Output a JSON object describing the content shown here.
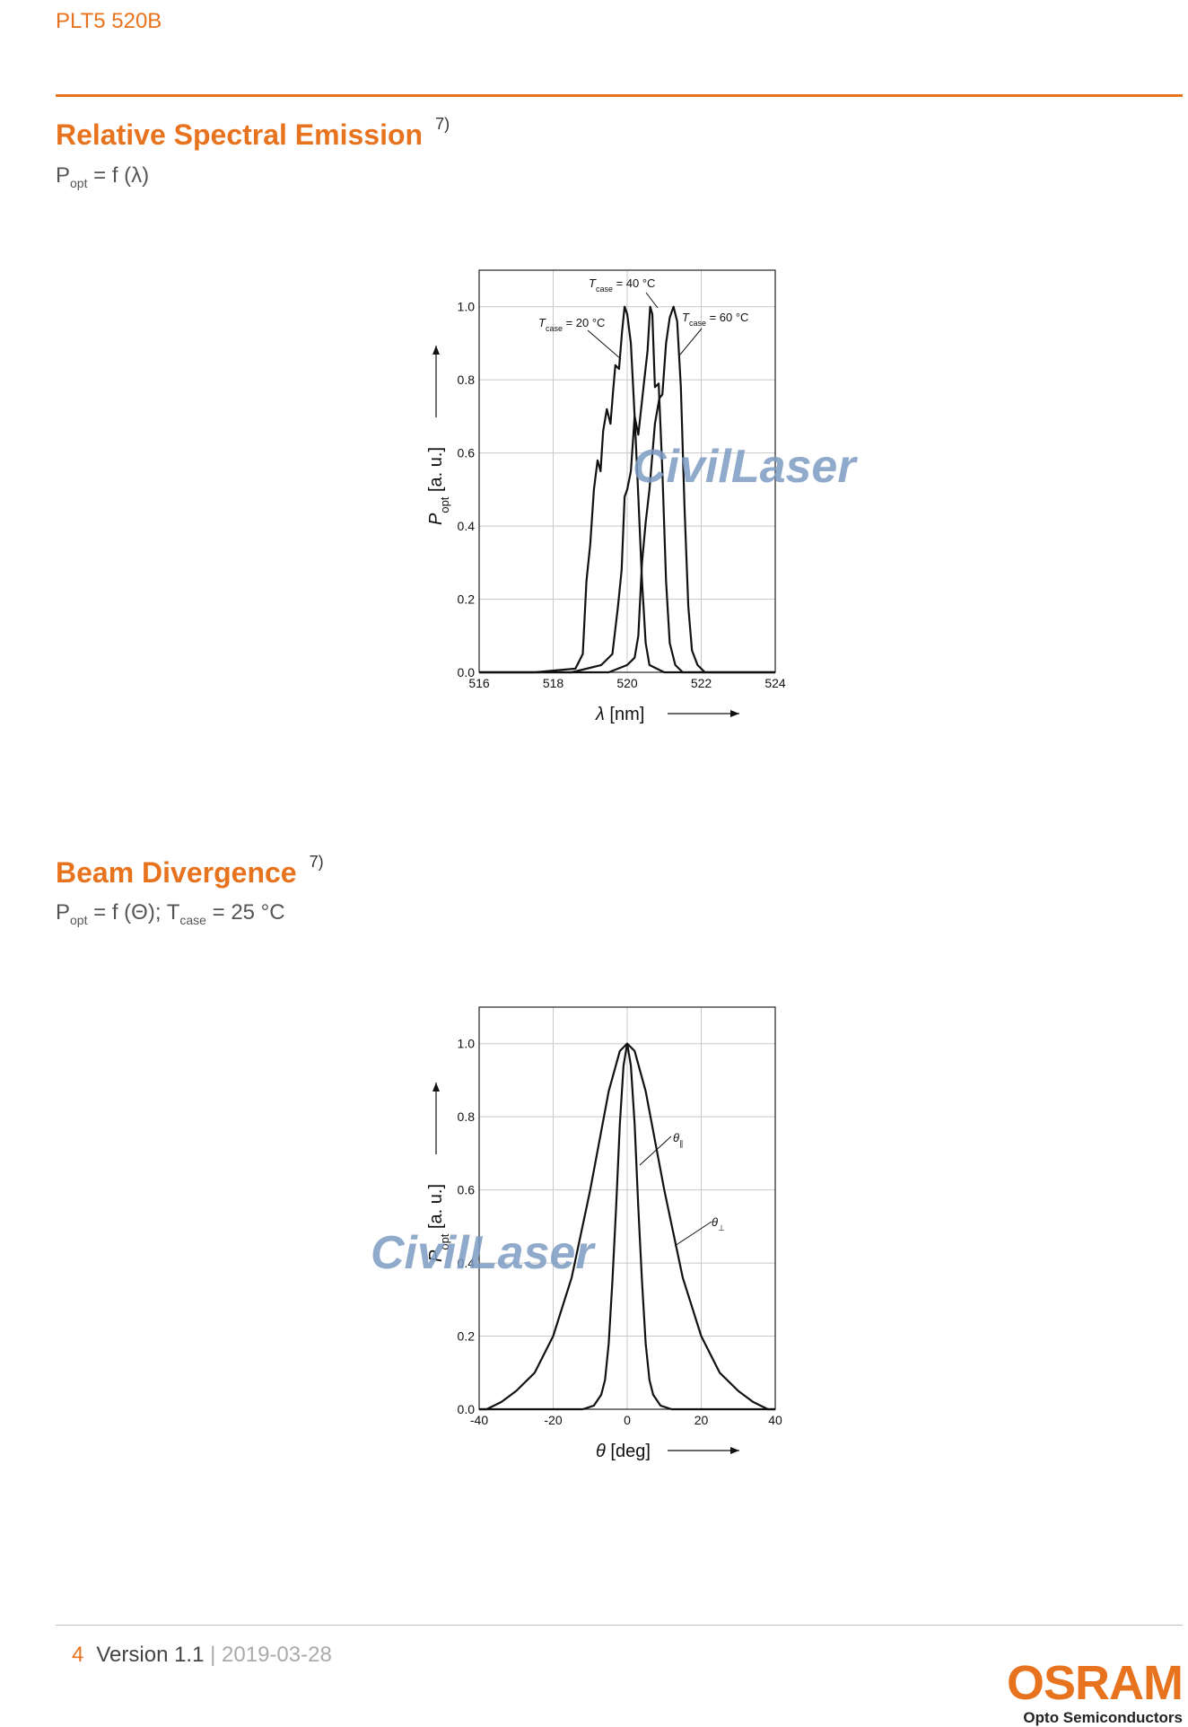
{
  "header": {
    "doc_id": "PLT5 520B"
  },
  "section1": {
    "title": "Relative Spectral Emission",
    "note": "7)",
    "formula": {
      "p": "P",
      "sub": "opt",
      "rest": " = f (λ)"
    }
  },
  "section2": {
    "title": "Beam Divergence",
    "note": "7)",
    "formula": {
      "p": "P",
      "sub": "opt",
      "mid": " = f (Θ); T",
      "sub2": "case",
      "rest": " = 25 °C"
    }
  },
  "footer": {
    "page": "4",
    "version": "Version 1.1",
    "sep": " | ",
    "date": "2019-03-28"
  },
  "logo": {
    "brand": "OSRAM",
    "tagline": "Opto Semiconductors"
  },
  "watermark": "CivilLaser",
  "chart_data": [
    {
      "type": "line",
      "ylabel_var": "P",
      "ylabel_sub": "opt",
      "ylabel_unit": "[a. u.]",
      "xlabel_var": "λ",
      "xlabel_unit": "[nm]",
      "xlim": [
        516,
        524
      ],
      "ylim": [
        0,
        1.1
      ],
      "xticks": [
        516,
        518,
        520,
        522,
        524
      ],
      "yticks": [
        0.0,
        0.2,
        0.4,
        0.6,
        0.8,
        1.0
      ],
      "ytick_labels": [
        "0.0",
        "0.2",
        "0.4",
        "0.6",
        "0.8",
        "1.0"
      ],
      "grid": true,
      "series": [
        {
          "name": "T_case = 20 °C",
          "label_var": "T",
          "label_sub": "case",
          "label_val": "= 20 °C",
          "x": [
            516,
            517.5,
            518.6,
            518.8,
            518.9,
            519.0,
            519.1,
            519.2,
            519.28,
            519.35,
            519.45,
            519.55,
            519.62,
            519.68,
            519.78,
            519.86,
            519.93,
            520.0,
            520.1,
            520.2,
            520.3,
            520.4,
            520.5,
            520.6,
            521,
            524
          ],
          "y": [
            0,
            0,
            0.01,
            0.05,
            0.25,
            0.35,
            0.5,
            0.58,
            0.55,
            0.66,
            0.72,
            0.68,
            0.77,
            0.84,
            0.83,
            0.93,
            1.0,
            0.98,
            0.9,
            0.7,
            0.48,
            0.25,
            0.08,
            0.02,
            0,
            0
          ]
        },
        {
          "name": "T_case = 40 °C",
          "label_var": "T",
          "label_sub": "case",
          "label_val": "= 40 °C",
          "x": [
            516,
            518.5,
            519.3,
            519.6,
            519.75,
            519.85,
            519.93,
            520.0,
            520.1,
            520.2,
            520.3,
            520.45,
            520.55,
            520.62,
            520.68,
            520.75,
            520.85,
            520.95,
            521.05,
            521.15,
            521.3,
            521.5,
            524
          ],
          "y": [
            0,
            0,
            0.02,
            0.05,
            0.18,
            0.28,
            0.48,
            0.5,
            0.55,
            0.7,
            0.65,
            0.79,
            0.88,
            1.0,
            0.98,
            0.78,
            0.79,
            0.55,
            0.25,
            0.08,
            0.02,
            0,
            0
          ]
        },
        {
          "name": "T_case = 60 °C",
          "label_var": "T",
          "label_sub": "case",
          "label_val": "= 60 °C",
          "x": [
            516,
            519.5,
            520.0,
            520.2,
            520.3,
            520.4,
            520.5,
            520.6,
            520.75,
            520.87,
            520.95,
            521.05,
            521.15,
            521.25,
            521.35,
            521.45,
            521.55,
            521.65,
            521.75,
            521.9,
            522.1,
            524
          ],
          "y": [
            0,
            0,
            0.02,
            0.04,
            0.1,
            0.3,
            0.41,
            0.5,
            0.68,
            0.75,
            0.76,
            0.9,
            0.97,
            1.0,
            0.96,
            0.78,
            0.45,
            0.18,
            0.06,
            0.02,
            0,
            0
          ]
        }
      ]
    },
    {
      "type": "line",
      "ylabel_var": "P",
      "ylabel_sub": "opt",
      "ylabel_unit": "[a. u.]",
      "xlabel_var": "θ",
      "xlabel_unit": "[deg]",
      "xlim": [
        -40,
        40
      ],
      "ylim": [
        0,
        1.1
      ],
      "xticks": [
        -40,
        -20,
        0,
        20,
        40
      ],
      "yticks": [
        0.0,
        0.2,
        0.4,
        0.6,
        0.8,
        1.0
      ],
      "ytick_labels": [
        "0.0",
        "0.2",
        "0.4",
        "0.6",
        "0.8",
        "1.0"
      ],
      "grid": true,
      "series": [
        {
          "name": "θ∥",
          "label_var": "θ",
          "label_sub": "∥",
          "x": [
            -40,
            -12,
            -9,
            -7,
            -6,
            -5,
            -4,
            -3,
            -2,
            -1,
            0,
            1,
            2,
            3,
            4,
            5,
            6,
            7,
            9,
            12,
            40
          ],
          "y": [
            0,
            0,
            0.01,
            0.04,
            0.08,
            0.18,
            0.35,
            0.55,
            0.78,
            0.94,
            1.0,
            0.94,
            0.78,
            0.55,
            0.35,
            0.18,
            0.08,
            0.04,
            0.01,
            0,
            0
          ]
        },
        {
          "name": "θ⊥",
          "label_var": "θ",
          "label_sub": "⊥",
          "x": [
            -40,
            -38,
            -34,
            -30,
            -25,
            -20,
            -15,
            -10,
            -5,
            -2,
            0,
            2,
            5,
            10,
            15,
            20,
            25,
            30,
            34,
            38,
            40
          ],
          "y": [
            0,
            0.0,
            0.02,
            0.05,
            0.1,
            0.2,
            0.36,
            0.6,
            0.87,
            0.98,
            1.0,
            0.98,
            0.87,
            0.6,
            0.36,
            0.2,
            0.1,
            0.05,
            0.02,
            0.0,
            0
          ]
        }
      ]
    }
  ]
}
